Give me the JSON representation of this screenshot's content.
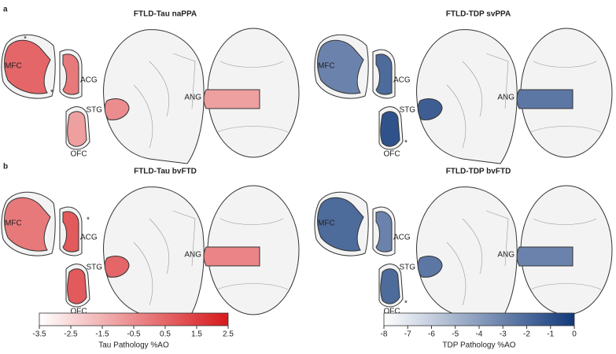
{
  "rows": [
    {
      "label": "a",
      "panels": [
        {
          "title": "FTLD-Tau naPPA",
          "regions": [
            {
              "name": "MFC",
              "value": 0.5
            },
            {
              "name": "ACG",
              "value": 0
            },
            {
              "name": "STG",
              "value": -0.5
            },
            {
              "name": "OFC",
              "value": -1
            },
            {
              "name": "ANG",
              "value": -1
            }
          ],
          "markers": [
            "*",
            "*"
          ]
        },
        {
          "title": "FTLD-TDP svPPA",
          "regions": [
            {
              "name": "MFC",
              "value": -3
            },
            {
              "name": "ACG",
              "value": -2
            },
            {
              "name": "STG",
              "value": -1.5
            },
            {
              "name": "OFC",
              "value": -1
            },
            {
              "name": "ANG",
              "value": -2.5
            }
          ],
          "markers": [
            "*"
          ]
        }
      ]
    },
    {
      "label": "b",
      "panels": [
        {
          "title": "FTLD-Tau bvFTD",
          "regions": [
            {
              "name": "MFC",
              "value": 0
            },
            {
              "name": "ACG",
              "value": 0.8
            },
            {
              "name": "STG",
              "value": 0.5
            },
            {
              "name": "OFC",
              "value": 0.8
            },
            {
              "name": "ANG",
              "value": -0.3
            }
          ],
          "markers": [
            "*"
          ]
        },
        {
          "title": "FTLD-TDP bvFTD",
          "regions": [
            {
              "name": "MFC",
              "value": -2
            },
            {
              "name": "ACG",
              "value": -3
            },
            {
              "name": "STG",
              "value": -2.5
            },
            {
              "name": "OFC",
              "value": -2
            },
            {
              "name": "ANG",
              "value": -3
            }
          ],
          "markers": [
            "*"
          ]
        }
      ]
    }
  ],
  "colorbars": [
    {
      "label": "Tau Pathology %AO",
      "lim": [
        -3.5,
        2.5
      ],
      "ticks": [
        -3.5,
        -2.5,
        -1.5,
        -0.5,
        0.5,
        1.5,
        2.5
      ],
      "color": "#d7191c"
    },
    {
      "label": "TDP Pathology %AO",
      "lim": [
        -8,
        0
      ],
      "ticks": [
        -8,
        -7,
        -6,
        -5,
        -4,
        -3,
        -2,
        -1,
        0
      ],
      "color": "#12397a"
    }
  ]
}
